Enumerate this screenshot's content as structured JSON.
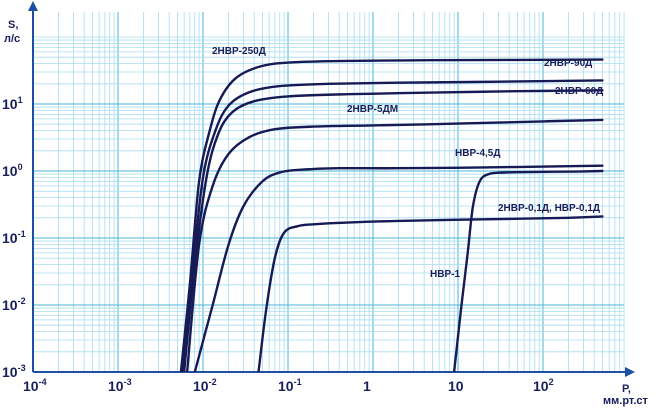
{
  "chart_data": {
    "type": "line",
    "ylabel_lines": [
      "S,",
      "л/с"
    ],
    "xlabel_lines": [
      "P,",
      "мм.рт.ст"
    ],
    "xscale": "log",
    "yscale": "log",
    "xlim": [
      0.0001,
      1000
    ],
    "ylim": [
      0.001,
      100
    ],
    "grid": true,
    "colors": {
      "curve": "#161a55",
      "grid_major": "#4bb3d9",
      "grid_minor": "#a9dcef",
      "axis": "#1e4fa3",
      "text": "#1a1f5c"
    },
    "x_ticks": [
      {
        "base": "10",
        "exp": "-4"
      },
      {
        "base": "10",
        "exp": "-3"
      },
      {
        "base": "10",
        "exp": "-2"
      },
      {
        "base": "10",
        "exp": "-1"
      },
      {
        "base": "1",
        "exp": ""
      },
      {
        "base": "10",
        "exp": ""
      },
      {
        "base": "10",
        "exp": "2"
      }
    ],
    "y_ticks": [
      {
        "base": "10",
        "exp": "-3"
      },
      {
        "base": "10",
        "exp": "-2"
      },
      {
        "base": "10",
        "exp": "-1"
      },
      {
        "base": "10",
        "exp": "0"
      },
      {
        "base": "10",
        "exp": "1"
      }
    ],
    "series": [
      {
        "name": "2НВР-250Д",
        "x": [
          0.0055,
          0.007,
          0.009,
          0.012,
          0.016,
          0.025,
          0.05,
          0.12,
          0.5,
          5,
          50,
          500
        ],
        "y": [
          0.001,
          0.02,
          0.7,
          4,
          12,
          25,
          37,
          42,
          44,
          45,
          45.5,
          46
        ]
      },
      {
        "name": "2НВР-90Д",
        "x": [
          0.0058,
          0.0075,
          0.01,
          0.014,
          0.02,
          0.035,
          0.08,
          0.3,
          2,
          30,
          500
        ],
        "y": [
          0.001,
          0.03,
          0.8,
          4,
          9.5,
          15,
          18.5,
          20,
          20.8,
          21.5,
          22.5
        ]
      },
      {
        "name": "2НВР-60Д",
        "x": [
          0.006,
          0.008,
          0.011,
          0.015,
          0.022,
          0.04,
          0.1,
          0.5,
          5,
          50,
          500
        ],
        "y": [
          0.001,
          0.04,
          0.8,
          3.5,
          7.5,
          11,
          13,
          14,
          14.8,
          15.5,
          16
        ]
      },
      {
        "name": "2НВР-5ДМ",
        "x": [
          0.0065,
          0.009,
          0.013,
          0.02,
          0.035,
          0.07,
          0.2,
          1,
          10,
          100,
          500
        ],
        "y": [
          0.001,
          0.08,
          0.6,
          1.8,
          3.2,
          4.2,
          4.6,
          4.8,
          5.1,
          5.5,
          5.8
        ]
      },
      {
        "name": "НВР-4,5Д",
        "x": [
          0.008,
          0.013,
          0.02,
          0.03,
          0.05,
          0.08,
          0.15,
          0.4,
          2,
          20,
          200,
          500
        ],
        "y": [
          0.001,
          0.01,
          0.08,
          0.3,
          0.7,
          0.95,
          1.05,
          1.1,
          1.1,
          1.13,
          1.18,
          1.2
        ]
      },
      {
        "name": "2НВР-0,1Д, НВР-0,1Д",
        "x": [
          0.045,
          0.055,
          0.07,
          0.09,
          0.13,
          0.2,
          0.5,
          2,
          20,
          200,
          500
        ],
        "y": [
          0.001,
          0.008,
          0.05,
          0.12,
          0.15,
          0.16,
          0.17,
          0.18,
          0.19,
          0.2,
          0.21
        ]
      },
      {
        "name": "НВР-1",
        "x": [
          9,
          11,
          13,
          15,
          18,
          23,
          35,
          80,
          250,
          500
        ],
        "y": [
          0.001,
          0.01,
          0.06,
          0.3,
          0.7,
          0.9,
          0.95,
          0.97,
          0.98,
          1.0
        ]
      }
    ]
  }
}
